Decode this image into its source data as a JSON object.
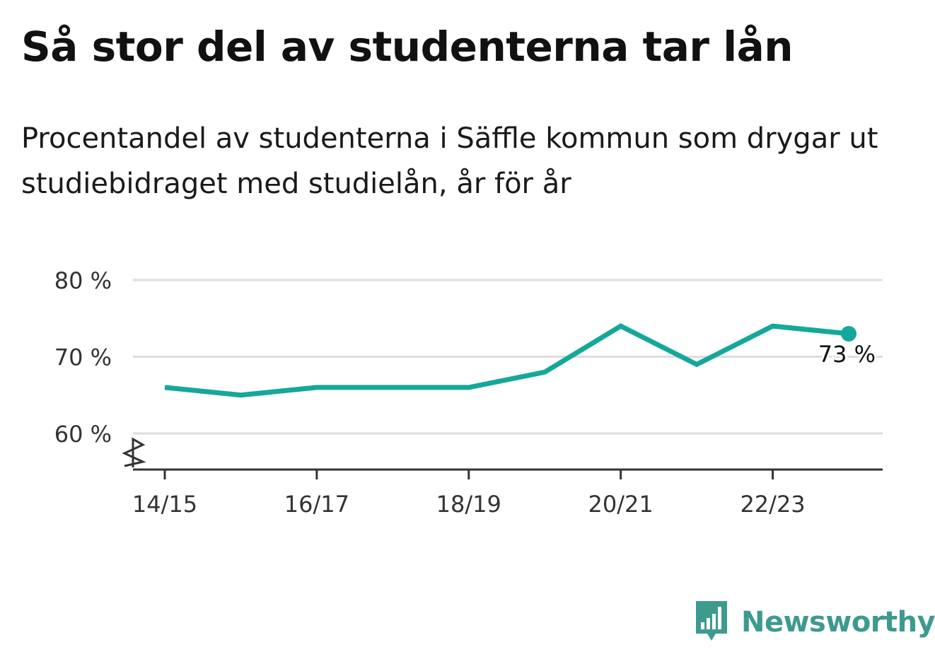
{
  "title": "Så stor del av studenterna tar lån",
  "subtitle": "Procentandel av studenterna i Säffle kommun som drygar ut studiebidraget med studielån, år för år",
  "brand": {
    "name": "Newsworthy"
  },
  "colors": {
    "line": "#14a89a",
    "grid": "#dddddd",
    "axis": "#333333",
    "brand": "#3d9a8f"
  },
  "chart_data": {
    "type": "line",
    "x": [
      "14/15",
      "15/16",
      "16/17",
      "17/18",
      "18/19",
      "19/20",
      "20/21",
      "21/22",
      "22/23",
      "23/24"
    ],
    "x_tick_labels": [
      "14/15",
      "16/17",
      "18/19",
      "20/21",
      "22/23"
    ],
    "series": [
      {
        "values": [
          66,
          65,
          66,
          66,
          66,
          68,
          74,
          69,
          74,
          73
        ]
      }
    ],
    "yticks": [
      60,
      70,
      80
    ],
    "ytick_labels": [
      "60 %",
      "70 %",
      "80 %"
    ],
    "ylim": [
      55,
      80
    ],
    "axis_break": true,
    "end_label": "73 %",
    "grid": true,
    "legend": "none"
  }
}
